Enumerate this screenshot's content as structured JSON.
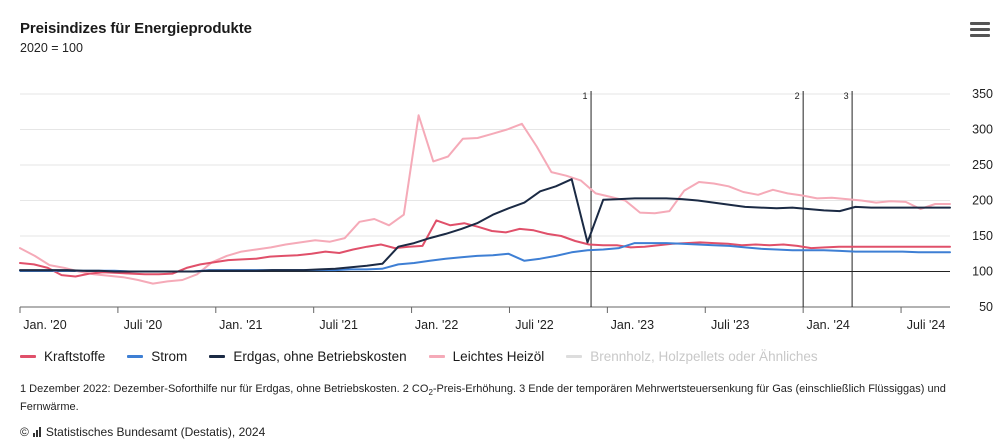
{
  "header": {
    "title": "Preisindizes für Energieprodukte",
    "subtitle": "2020 = 100"
  },
  "menu": {
    "icon": "hamburger-menu-icon"
  },
  "chart_data": {
    "type": "line",
    "title": "Preisindizes für Energieprodukte",
    "subtitle": "2020 = 100",
    "xlabel": "",
    "ylabel": "",
    "ylim": [
      50,
      350
    ],
    "y_ticks": [
      50,
      100,
      150,
      200,
      250,
      300,
      350
    ],
    "baseline": 100,
    "x_start": "2020-01",
    "x_end": "2024-10",
    "x_ticks": [
      {
        "label": "Jan. '20",
        "month": 0
      },
      {
        "label": "Juli '20",
        "month": 6
      },
      {
        "label": "Jan. '21",
        "month": 12
      },
      {
        "label": "Juli '21",
        "month": 18
      },
      {
        "label": "Jan. '22",
        "month": 24
      },
      {
        "label": "Juli '22",
        "month": 30
      },
      {
        "label": "Jan. '23",
        "month": 36
      },
      {
        "label": "Juli '23",
        "month": 42
      },
      {
        "label": "Jan. '24",
        "month": 48
      },
      {
        "label": "Juli '24",
        "month": 54
      }
    ],
    "annotations": [
      {
        "label": "1",
        "month": 35
      },
      {
        "label": "2",
        "month": 48
      },
      {
        "label": "3",
        "month": 51
      }
    ],
    "series": [
      {
        "name": "Kraftstoffe",
        "color": "#e0506a",
        "visible": true,
        "values": [
          112,
          110,
          105,
          95,
          93,
          97,
          99,
          98,
          97,
          96,
          96,
          97,
          105,
          110,
          113,
          116,
          117,
          118,
          121,
          122,
          123,
          125,
          128,
          126,
          131,
          135,
          138,
          133,
          135,
          136,
          172,
          165,
          168,
          163,
          157,
          155,
          160,
          158,
          153,
          150,
          143,
          138,
          137,
          137,
          134,
          135,
          137,
          139,
          140,
          141,
          140,
          139,
          137,
          138,
          137,
          138,
          136,
          133,
          134,
          135,
          135,
          135,
          135,
          135,
          135,
          135,
          135,
          135
        ]
      },
      {
        "name": "Strom",
        "color": "#3e7fd4",
        "visible": true,
        "values": [
          101,
          101,
          101,
          101,
          101,
          101,
          101,
          100,
          100,
          100,
          100,
          100,
          102,
          102,
          102,
          102,
          102,
          102,
          102,
          102,
          102,
          103,
          103,
          104,
          110,
          112,
          115,
          118,
          120,
          122,
          123,
          125,
          115,
          118,
          122,
          127,
          130,
          131,
          133,
          140,
          140,
          140,
          139,
          138,
          137,
          136,
          134,
          132,
          131,
          130,
          130,
          130,
          129,
          128,
          128,
          128,
          128,
          127,
          127,
          127
        ]
      },
      {
        "name": "Erdgas, ohne Betriebskosten",
        "color": "#1b2a44",
        "visible": true,
        "values": [
          102,
          102,
          102,
          102,
          101,
          101,
          100,
          100,
          100,
          100,
          100,
          100,
          101,
          101,
          101,
          101,
          102,
          102,
          102,
          103,
          104,
          106,
          108,
          111,
          135,
          140,
          147,
          153,
          160,
          168,
          180,
          189,
          197,
          213,
          220,
          230,
          141,
          201,
          202,
          203,
          203,
          203,
          202,
          200,
          197,
          194,
          191,
          190,
          189,
          190,
          188,
          186,
          185,
          191,
          190,
          190,
          190,
          190,
          190,
          190
        ]
      },
      {
        "name": "Leichtes Heizöl",
        "color": "#f5aab8",
        "visible": true,
        "values": [
          133,
          122,
          109,
          105,
          100,
          96,
          94,
          92,
          88,
          83,
          86,
          88,
          96,
          113,
          122,
          128,
          131,
          134,
          138,
          141,
          144,
          142,
          147,
          170,
          174,
          165,
          180,
          320,
          255,
          262,
          287,
          288,
          294,
          300,
          308,
          276,
          240,
          235,
          228,
          210,
          205,
          200,
          183,
          182,
          185,
          214,
          226,
          224,
          220,
          212,
          208,
          215,
          210,
          207,
          203,
          204,
          202,
          200,
          197,
          199,
          198,
          188,
          195,
          195
        ]
      },
      {
        "name": "Brennholz, Holzpellets oder Ähnliches",
        "color": "#c8c8c8",
        "visible": false,
        "values": []
      }
    ]
  },
  "legend": [
    {
      "label": "Kraftstoffe",
      "color": "#e0506a",
      "active": true
    },
    {
      "label": "Strom",
      "color": "#3e7fd4",
      "active": true
    },
    {
      "label": "Erdgas, ohne Betriebskosten",
      "color": "#1b2a44",
      "active": true
    },
    {
      "label": "Leichtes Heizöl",
      "color": "#f5aab8",
      "active": true
    },
    {
      "label": "Brennholz, Holzpellets oder Ähnliches",
      "color": "#c8c8c8",
      "active": false
    }
  ],
  "footnote": {
    "part1": "1 Dezember 2022: Dezember-Soforthilfe nur für Erdgas, ohne Betriebskosten. 2 CO",
    "sub": "2",
    "part2": "-Preis-Erhöhung. 3 Ende der temporären Mehrwertsteuersenkung für Gas (einschließlich Flüssiggas) und Fernwärme."
  },
  "source": {
    "copyright": "©",
    "text": "Statistisches Bundesamt (Destatis), 2024"
  }
}
